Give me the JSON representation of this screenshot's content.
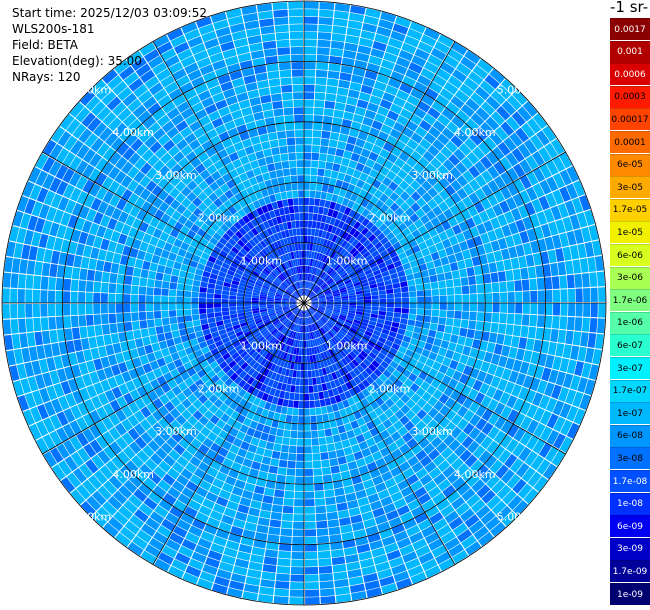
{
  "info": {
    "start_time": "Start time: 2025/12/03 03:09:52",
    "instrument": "WLS200s-181",
    "field": "Field: BETA",
    "elevation": "Elevation(deg): 35.00",
    "nrays": "NRays: 120"
  },
  "chart_data": {
    "type": "heatmap",
    "projection": "polar-ppi",
    "field": "BETA",
    "elevation_deg": 35.0,
    "n_rays": 120,
    "max_range_km": 5.0,
    "range_ring_labels": [
      "1.00km",
      "2.00km",
      "3.00km",
      "4.00km",
      "5.00km"
    ],
    "units_label": "-1 sr-",
    "colorbar": {
      "ticks": [
        "0.0017",
        "0.001",
        "0.0006",
        "0.0003",
        "0.00017",
        "0.0001",
        "6e-05",
        "3e-05",
        "1.7e-05",
        "1e-05",
        "6e-06",
        "3e-06",
        "1.7e-06",
        "1e-06",
        "6e-07",
        "3e-07",
        "1.7e-07",
        "1e-07",
        "6e-08",
        "3e-08",
        "1.7e-08",
        "1e-08",
        "6e-09",
        "3e-09",
        "1.7e-09",
        "1e-09"
      ],
      "colors": [
        "#8b0000",
        "#b00000",
        "#d80000",
        "#ff1a00",
        "#ff4400",
        "#ff6a00",
        "#ff8a00",
        "#ffaa00",
        "#ffd000",
        "#f0f000",
        "#d8ff1e",
        "#aaff55",
        "#80ff80",
        "#55ffaa",
        "#2affd0",
        "#00f0ff",
        "#00d8ff",
        "#00b8ff",
        "#0096ff",
        "#0072ff",
        "#0050ff",
        "#0030ff",
        "#0000f0",
        "#0000c8",
        "#00009a",
        "#000070"
      ]
    },
    "field_summary": {
      "dominant_levels": [
        "1e-07",
        "6e-08",
        "3e-08"
      ],
      "near_range_levels": [
        "1.7e-08",
        "1e-08",
        "6e-09"
      ]
    }
  }
}
